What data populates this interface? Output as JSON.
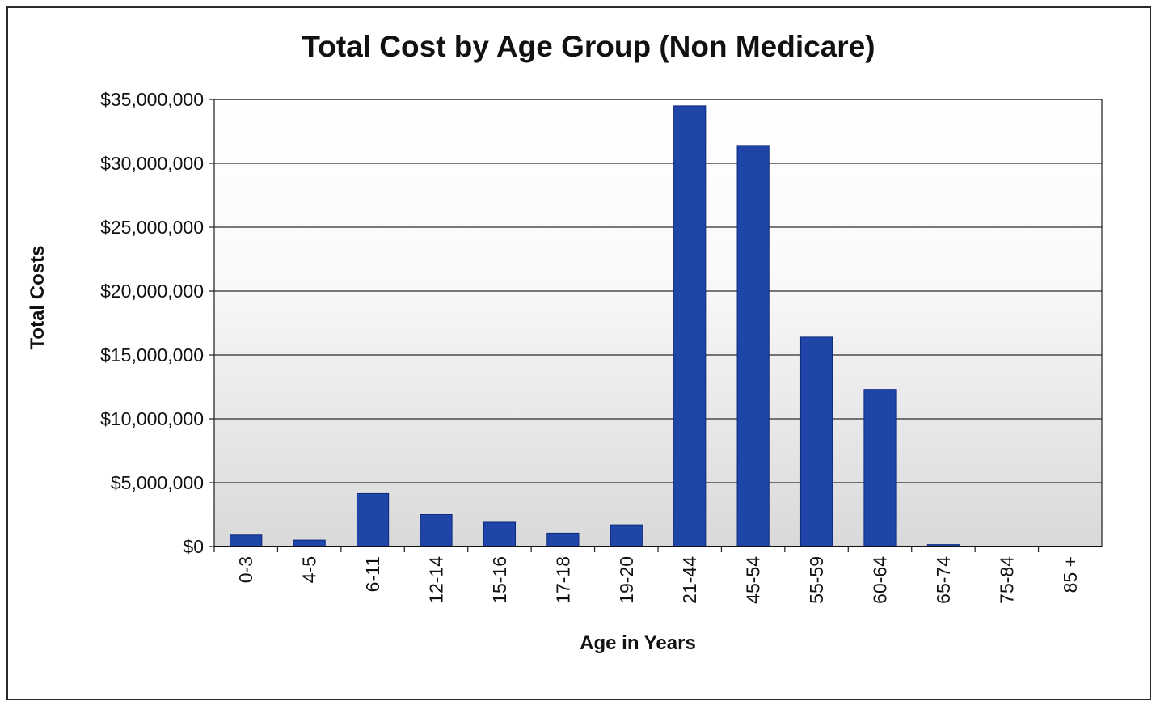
{
  "chart_data": {
    "type": "bar",
    "title": "Total Cost by Age Group (Non Medicare)",
    "xlabel": "Age in Years",
    "ylabel": "Total Costs",
    "categories": [
      "0-3",
      "4-5",
      "6-11",
      "12-14",
      "15-16",
      "17-18",
      "19-20",
      "21-44",
      "45-54",
      "55-59",
      "60-64",
      "65-74",
      "75-84",
      "85 +"
    ],
    "series": [
      {
        "values": [
          900000,
          500000,
          4150000,
          2500000,
          1900000,
          1050000,
          1700000,
          34500000,
          31400000,
          16400000,
          12300000,
          150000,
          0,
          0
        ]
      }
    ],
    "ylim": [
      0,
      35000000
    ],
    "yticks": [
      0,
      5000000,
      10000000,
      15000000,
      20000000,
      25000000,
      30000000,
      35000000
    ],
    "ytick_labels": [
      "$0",
      "$5,000,000",
      "$10,000,000",
      "$15,000,000",
      "$20,000,000",
      "$25,000,000",
      "$30,000,000",
      "$35,000,000"
    ],
    "grid": true,
    "legend": "none",
    "colors": {
      "bar": "#1f45a8",
      "plot_background_top": "#ffffff",
      "plot_background_bottom": "#d9d9d9"
    }
  }
}
